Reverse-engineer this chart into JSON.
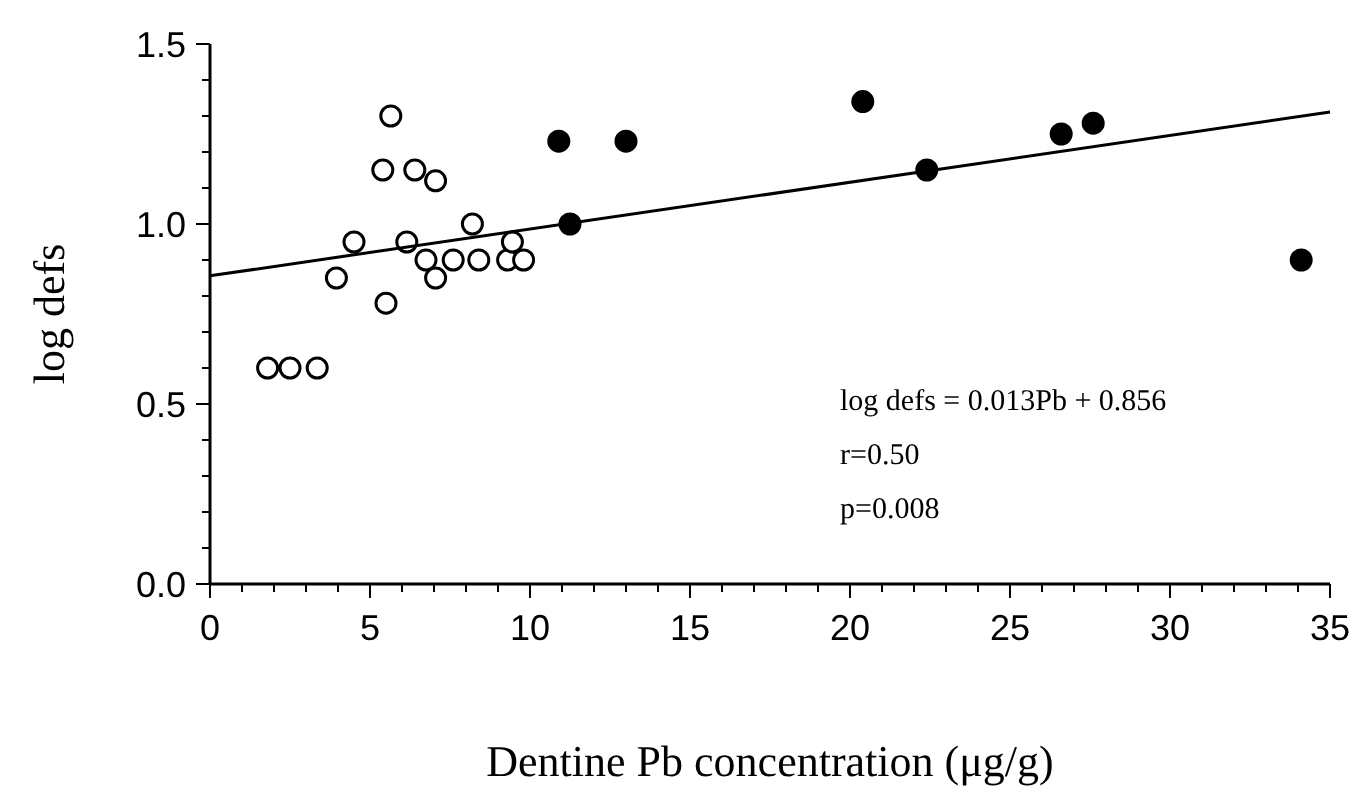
{
  "chart_data": {
    "type": "scatter",
    "xlabel": "Dentine Pb concentration (μg/g)",
    "ylabel": "log defs",
    "xlim": [
      0,
      35
    ],
    "ylim": [
      0,
      1.5
    ],
    "xticks": [
      0,
      {
        "value": 1,
        "label": null
      },
      {
        "value": 2,
        "label": null
      },
      {
        "value": 3,
        "label": null
      },
      {
        "value": 4,
        "label": null
      },
      5,
      {
        "value": 6,
        "label": null
      },
      {
        "value": 7,
        "label": null
      },
      {
        "value": 8,
        "label": null
      },
      {
        "value": 9,
        "label": null
      },
      10,
      {
        "value": 11,
        "label": null
      },
      {
        "value": 12,
        "label": null
      },
      {
        "value": 13,
        "label": null
      },
      {
        "value": 14,
        "label": null
      },
      15,
      {
        "value": 16,
        "label": null
      },
      {
        "value": 17,
        "label": null
      },
      {
        "value": 18,
        "label": null
      },
      {
        "value": 19,
        "label": null
      },
      20,
      {
        "value": 21,
        "label": null
      },
      {
        "value": 22,
        "label": null
      },
      {
        "value": 23,
        "label": null
      },
      {
        "value": 24,
        "label": null
      },
      25,
      {
        "value": 26,
        "label": null
      },
      {
        "value": 27,
        "label": null
      },
      {
        "value": 28,
        "label": null
      },
      {
        "value": 29,
        "label": null
      },
      30,
      {
        "value": 31,
        "label": null
      },
      {
        "value": 32,
        "label": null
      },
      {
        "value": 33,
        "label": null
      },
      {
        "value": 34,
        "label": null
      },
      35
    ],
    "yticks": [
      {
        "value": 0,
        "label": "0.0"
      },
      {
        "value": 0.1,
        "label": null
      },
      {
        "value": 0.2,
        "label": null
      },
      {
        "value": 0.3,
        "label": null
      },
      {
        "value": 0.4,
        "label": null
      },
      0.5,
      {
        "value": 0.6,
        "label": null
      },
      {
        "value": 0.7,
        "label": null
      },
      {
        "value": 0.8,
        "label": null
      },
      {
        "value": 0.9,
        "label": null
      },
      {
        "value": 1,
        "label": "1.0"
      },
      {
        "value": 1.1,
        "label": null
      },
      {
        "value": 1.2,
        "label": null
      },
      {
        "value": 1.3,
        "label": null
      },
      {
        "value": 1.4,
        "label": null
      },
      1.5
    ],
    "marker": "circle",
    "grid": false,
    "series": [
      {
        "color": "#ffffff",
        "x": [
          1.8,
          2.5,
          3.35,
          3.95,
          4.5,
          5.4,
          5.65,
          5.5,
          6.15,
          6.4,
          6.75,
          7.05,
          7.05,
          7.6,
          8.2,
          8.4,
          9.3,
          9.45,
          9.8
        ],
        "values": [
          0.6,
          0.6,
          0.6,
          0.85,
          0.95,
          1.15,
          1.3,
          0.78,
          0.95,
          1.15,
          0.9,
          1.12,
          0.85,
          0.9,
          1.0,
          0.9,
          0.9,
          0.95,
          0.9
        ]
      },
      {
        "color": "#000000",
        "x": [
          10.9,
          11.25,
          13.0,
          20.4,
          22.4,
          26.6,
          27.6,
          34.1
        ],
        "values": [
          1.23,
          1.0,
          1.23,
          1.34,
          1.15,
          1.25,
          1.28,
          0.9
        ]
      },
      {
        "type": "line",
        "color": "#000000",
        "marker": "none",
        "x": [
          0,
          35
        ],
        "values": [
          0.856,
          1.311
        ]
      }
    ],
    "annotations": [
      "log defs = 0.013Pb + 0.856",
      "r=0.50",
      "p=0.008"
    ]
  }
}
